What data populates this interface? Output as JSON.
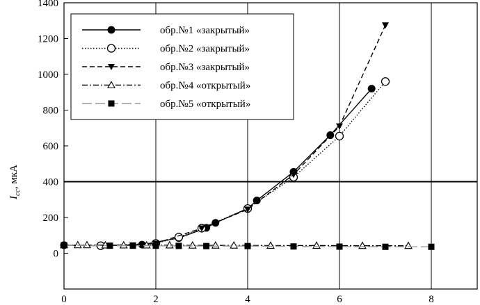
{
  "chart_data": {
    "type": "line",
    "xlim": [
      0,
      9
    ],
    "ylim": [
      -200,
      1400
    ],
    "x_ticks": [
      0,
      2,
      4,
      6,
      8
    ],
    "y_ticks": [
      0,
      200,
      400,
      600,
      800,
      1000,
      1200,
      1400
    ],
    "x_tick_labels": [
      "0",
      "2",
      "4",
      "6",
      "8"
    ],
    "y_tick_labels": [
      "0",
      "200",
      "400",
      "600",
      "800",
      "1000",
      "1200",
      "1400"
    ],
    "grid": "vertical lines at x ticks",
    "reference_line": {
      "y": 400
    },
    "ylabel": {
      "main": "I",
      "sub": "cc",
      "unit": ", мкА"
    },
    "xlabel": "",
    "legend_position": "top-left",
    "series": [
      {
        "name": "обр.№1 «закрытый»",
        "line": "solid",
        "marker": "filled-circle",
        "color": "#000000",
        "x": [
          0,
          0.8,
          1.7,
          2.5,
          3.1,
          3.3,
          4.0,
          4.2,
          5.0,
          5.8,
          6.7
        ],
        "y": [
          45,
          42,
          48,
          85,
          142,
          170,
          250,
          295,
          455,
          660,
          920
        ]
      },
      {
        "name": "обр.№2 «закрытый»",
        "line": "dotted",
        "marker": "open-circle",
        "color": "#000000",
        "x": [
          0.8,
          2.0,
          2.5,
          3.0,
          4.0,
          5.0,
          6.0,
          7.0
        ],
        "y": [
          42,
          55,
          90,
          140,
          250,
          425,
          655,
          960
        ]
      },
      {
        "name": "обр.№3 «закрытый»",
        "line": "dashed",
        "marker": "filled-triangle-down",
        "color": "#000000",
        "x": [
          0,
          1.5,
          2.0,
          3.0,
          4.0,
          5.0,
          6.0,
          7.0
        ],
        "y": [
          45,
          45,
          55,
          140,
          245,
          440,
          710,
          1275
        ]
      },
      {
        "name": "обр.№4 «открытый»",
        "line": "dash-dot",
        "marker": "open-triangle-up",
        "color": "#000000",
        "x": [
          0,
          0.3,
          0.5,
          0.9,
          1.3,
          1.8,
          2.3,
          2.8,
          3.3,
          3.7,
          4.5,
          5.5,
          6.5,
          7.5
        ],
        "y": [
          46,
          46,
          46,
          45,
          45,
          45,
          45,
          44,
          44,
          44,
          43,
          43,
          42,
          42
        ]
      },
      {
        "name": "обр.№5 «открытый»",
        "line": "long-dash",
        "marker": "filled-square",
        "color": "#999999",
        "x": [
          0,
          1.0,
          1.5,
          2.0,
          2.5,
          3.1,
          4.0,
          5.0,
          6.0,
          7.0,
          8.0
        ],
        "y": [
          45,
          42,
          42,
          42,
          41,
          40,
          40,
          38,
          37,
          36,
          36
        ]
      }
    ]
  }
}
